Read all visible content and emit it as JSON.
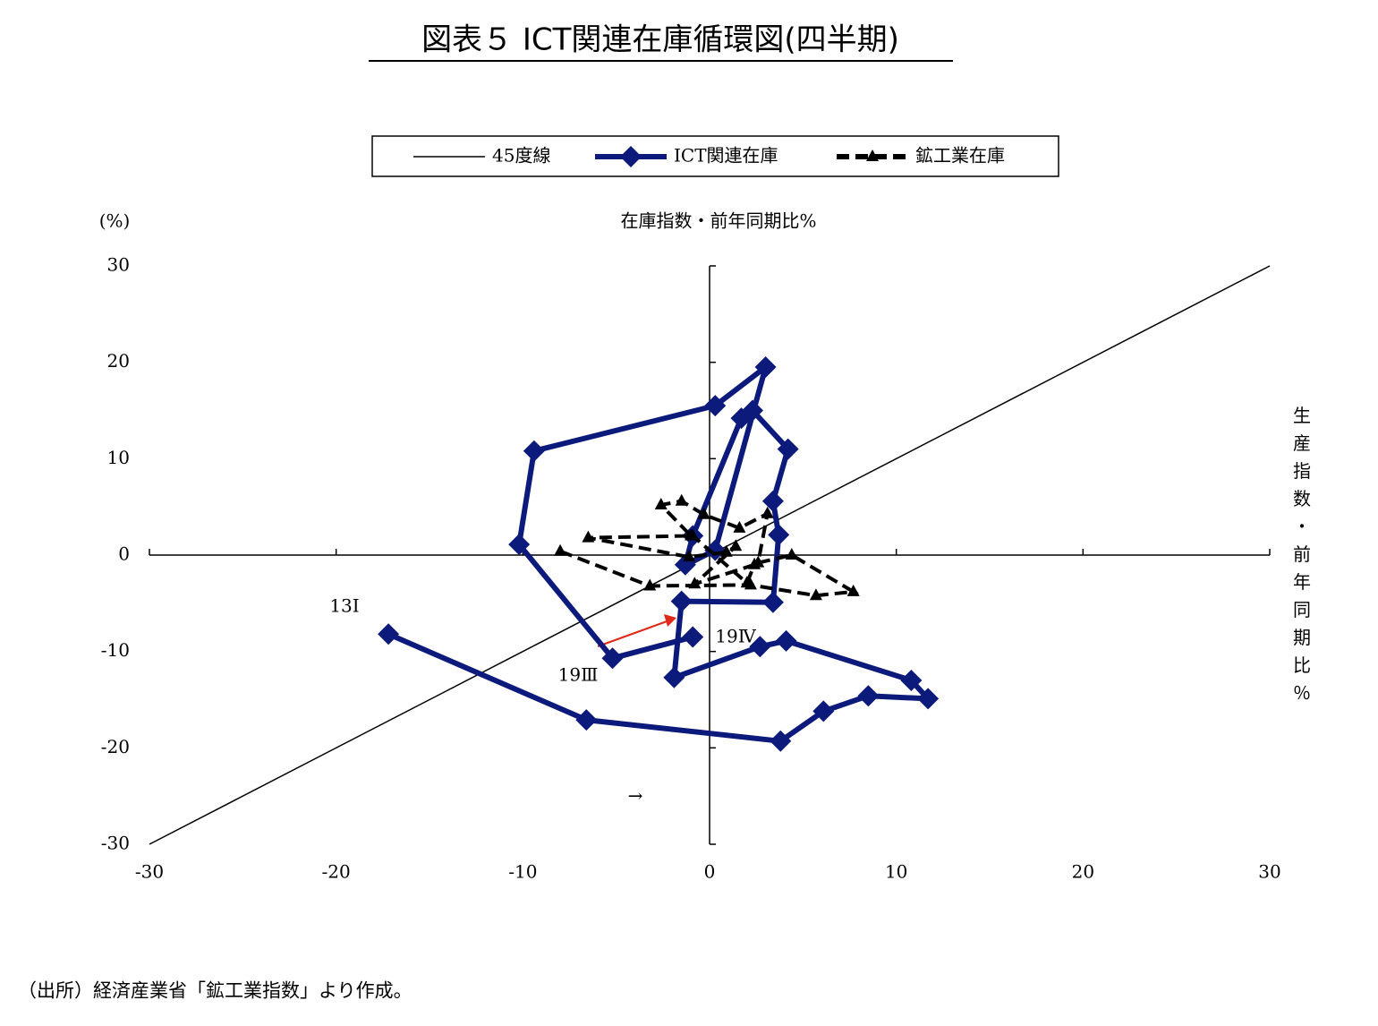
{
  "chart_data": {
    "type": "line",
    "title": "図表５ ICT関連在庫循環図(四半期)",
    "x_label": "在庫指数・前年同期比%",
    "y_label": "生産指数・前年同期比％",
    "y_unit": "(%)",
    "source": "（出所）経済産業省「鉱工業指数」より作成。",
    "annotations": [
      "13Ⅰ",
      "19Ⅲ",
      "19Ⅳ",
      "→"
    ],
    "xlim": [
      -30,
      30
    ],
    "ylim": [
      -30,
      30
    ],
    "xticks": [
      -30,
      -20,
      -10,
      0,
      10,
      20,
      30
    ],
    "yticks": [
      -30,
      -20,
      -10,
      0,
      10,
      20,
      30
    ],
    "legend": "top",
    "series": [
      {
        "name": "45度線",
        "color": "#000000",
        "style": "solid",
        "marker": "none",
        "x": [
          -30,
          30
        ],
        "values": [
          -30,
          30
        ]
      },
      {
        "name": "ICT関連在庫",
        "color": "#0c1a7c",
        "style": "solid",
        "marker": "diamond",
        "x": [
          -17.2,
          -6.6,
          3.8,
          6.1,
          8.5,
          11.7,
          10.8,
          4.1,
          2.7,
          -1.9,
          -1.5,
          3.4,
          3.7,
          3.4,
          4.2,
          2.3,
          1.7,
          -0.9,
          -1.3,
          0.3,
          3.0,
          0.3,
          -9.4,
          -10.2,
          -5.2,
          -0.9
        ],
        "values": [
          -8.2,
          -17.1,
          -19.3,
          -16.2,
          -14.6,
          -14.9,
          -13.0,
          -8.9,
          -9.5,
          -12.7,
          -4.8,
          -4.9,
          2.1,
          5.6,
          11.0,
          15.0,
          14.2,
          2.0,
          -1.0,
          0.5,
          19.5,
          15.5,
          10.8,
          1.1,
          -10.7,
          -8.5
        ]
      },
      {
        "name": "鉱工業在庫",
        "color": "#000000",
        "style": "dashed",
        "marker": "triangle",
        "x": [
          -8.0,
          -3.2,
          2.2,
          5.7,
          7.7,
          4.4,
          2.6,
          3.1,
          1.6,
          -0.3,
          -1.5,
          -2.6,
          -1.0,
          -6.5,
          -1.1,
          0.9,
          1.4,
          -0.8,
          2.4,
          2.0,
          -0.9
        ],
        "values": [
          0.4,
          -3.2,
          -3.1,
          -4.2,
          -3.8,
          0.0,
          -0.8,
          4.3,
          2.8,
          4.2,
          5.6,
          5.2,
          2.0,
          1.8,
          -0.2,
          0.3,
          0.9,
          -3.0,
          -1.0,
          -2.9,
          2.0
        ]
      }
    ]
  }
}
